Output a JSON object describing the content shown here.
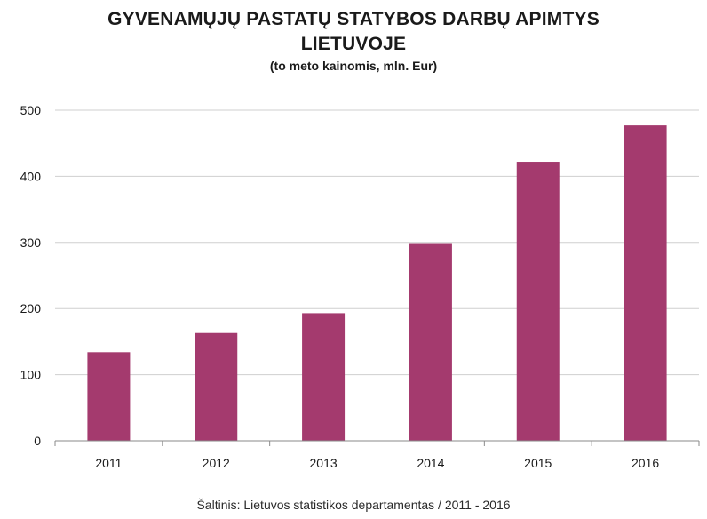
{
  "title_line1": "GYVENAMŲJŲ PASTATŲ STATYBOS DARBŲ APIMTYS",
  "title_line2": "LIETUVOJE",
  "subtitle": "(to meto kainomis, mln. Eur)",
  "source": "Šaltinis: Lietuvos statistikos departamentas / 2011 - 2016",
  "colors": {
    "bar": "#a43a6e",
    "grid": "#cfcfcf",
    "axis": "#8a8a8a",
    "text": "#1a1a1a"
  },
  "chart_data": {
    "type": "bar",
    "title": "GYVENAMŲJŲ PASTATŲ STATYBOS DARBŲ APIMTYS LIETUVOJE",
    "subtitle": "(to meto kainomis, mln. Eur)",
    "categories": [
      "2011",
      "2012",
      "2013",
      "2014",
      "2015",
      "2016"
    ],
    "values": [
      134,
      163,
      193,
      299,
      422,
      477
    ],
    "ylim": [
      0,
      500
    ],
    "yticks": [
      0,
      100,
      200,
      300,
      400,
      500
    ],
    "xlabel": "",
    "ylabel": "",
    "grid": true,
    "legend": "none"
  }
}
